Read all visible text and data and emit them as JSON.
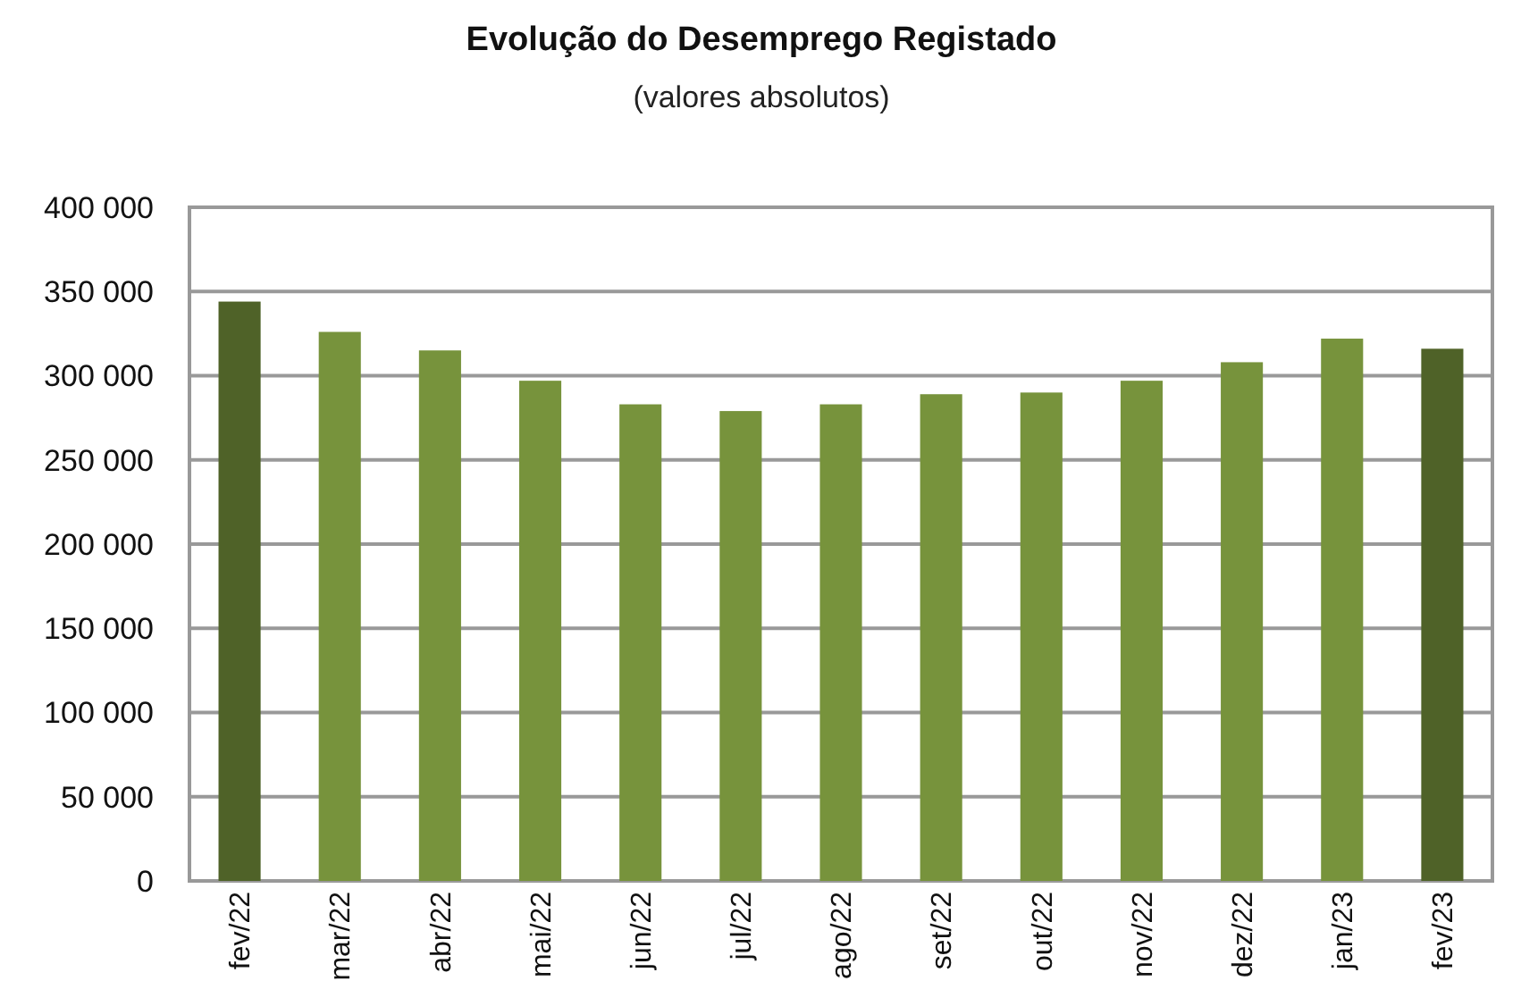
{
  "chart_data": {
    "type": "bar",
    "title": "Evolução do Desemprego Registado",
    "subtitle": "(valores absolutos)",
    "categories": [
      "fev/22",
      "mar/22",
      "abr/22",
      "mai/22",
      "jun/22",
      "jul/22",
      "ago/22",
      "set/22",
      "out/22",
      "nov/22",
      "dez/22",
      "jan/23",
      "fev/23"
    ],
    "values": [
      344000,
      326000,
      315000,
      297000,
      283000,
      279000,
      283000,
      289000,
      290000,
      297000,
      308000,
      322000,
      316000
    ],
    "colors": [
      "#4f6228",
      "#77933c",
      "#77933c",
      "#77933c",
      "#77933c",
      "#77933c",
      "#77933c",
      "#77933c",
      "#77933c",
      "#77933c",
      "#77933c",
      "#77933c",
      "#4f6228"
    ],
    "ylim": [
      0,
      400000
    ],
    "yticks": [
      {
        "value": 0,
        "label": "0"
      },
      {
        "value": 50000,
        "label": "50 000"
      },
      {
        "value": 100000,
        "label": "100 000"
      },
      {
        "value": 150000,
        "label": "150 000"
      },
      {
        "value": 200000,
        "label": "200 000"
      },
      {
        "value": 250000,
        "label": "250 000"
      },
      {
        "value": 300000,
        "label": "300 000"
      },
      {
        "value": 350000,
        "label": "350 000"
      },
      {
        "value": 400000,
        "label": "400 000"
      }
    ],
    "grid": "y"
  }
}
